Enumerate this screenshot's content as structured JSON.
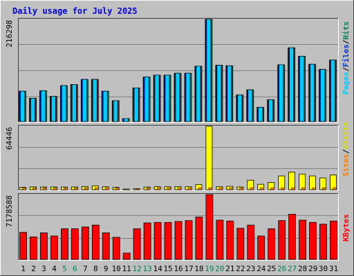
{
  "chart_data": [
    {
      "type": "bar",
      "title": "Daily usage for July 2025",
      "categories": [
        "1",
        "2",
        "3",
        "4",
        "5",
        "6",
        "7",
        "8",
        "9",
        "10",
        "11",
        "12",
        "13",
        "14",
        "15",
        "16",
        "17",
        "18",
        "19",
        "20",
        "21",
        "22",
        "23",
        "24",
        "25",
        "26",
        "27",
        "28",
        "29",
        "30",
        "31"
      ],
      "weekend_days": [
        "5",
        "6",
        "12",
        "13",
        "19",
        "20",
        "26",
        "27"
      ],
      "ymax_label": "216298",
      "ylim": [
        0,
        216298
      ],
      "grid": true,
      "legend_position": "right",
      "legend_entries": [
        "Pages",
        "/",
        "Files",
        "/",
        "Hits"
      ],
      "series": [
        {
          "name": "Hits",
          "color": "#00805c",
          "values": [
            64000,
            49000,
            65000,
            53000,
            76000,
            78000,
            89000,
            89000,
            64000,
            44000,
            6000,
            71000,
            94000,
            98000,
            98000,
            102000,
            102000,
            117000,
            216298,
            119000,
            118000,
            56000,
            67000,
            30000,
            46000,
            120000,
            156000,
            138000,
            121000,
            110000,
            130000
          ]
        },
        {
          "name": "Files",
          "color": "#0033cc",
          "values": [
            64000,
            49000,
            65000,
            53000,
            76000,
            78000,
            89000,
            89000,
            64000,
            44000,
            6000,
            71000,
            94000,
            98000,
            98000,
            102000,
            102000,
            117000,
            216298,
            119000,
            118000,
            56000,
            67000,
            30000,
            46000,
            120000,
            156000,
            138000,
            121000,
            110000,
            130000
          ]
        },
        {
          "name": "Pages",
          "color": "#00ccff",
          "values": [
            64000,
            49000,
            65000,
            53000,
            76000,
            78000,
            89000,
            89000,
            64000,
            44000,
            6000,
            71000,
            94000,
            98000,
            98000,
            102000,
            102000,
            117000,
            216298,
            119000,
            118000,
            56000,
            67000,
            30000,
            46000,
            120000,
            156000,
            138000,
            121000,
            110000,
            130000
          ]
        }
      ]
    },
    {
      "type": "bar",
      "ymax_label": "64446",
      "ylim": [
        0,
        64446
      ],
      "grid": true,
      "legend_position": "right",
      "legend_entries": [
        "Sites",
        "/",
        "Visits"
      ],
      "series": [
        {
          "name": "Visits",
          "color": "#ffff00",
          "values": [
            2500,
            2900,
            2700,
            2800,
            2800,
            2800,
            3300,
            4000,
            3000,
            2400,
            200,
            1100,
            2700,
            3100,
            3000,
            3200,
            3200,
            5400,
            64446,
            3200,
            3500,
            2800,
            9700,
            5500,
            7400,
            14000,
            18000,
            16000,
            14000,
            12000,
            15000
          ]
        },
        {
          "name": "Sites",
          "color": "#ff8000",
          "values": [
            2000,
            2000,
            2000,
            2000,
            2000,
            2000,
            2000,
            2000,
            2000,
            2000,
            200,
            1000,
            2000,
            2000,
            2000,
            2000,
            2000,
            2000,
            2000,
            2000,
            2000,
            2000,
            2000,
            2000,
            2000,
            2000,
            2000,
            2000,
            2000,
            2000,
            2000
          ]
        }
      ]
    },
    {
      "type": "bar",
      "ymax_label": "7178588",
      "ylim": [
        0,
        7178588
      ],
      "grid": true,
      "legend_position": "right",
      "legend_entries": [
        "KBytes"
      ],
      "series": [
        {
          "name": "KBytes",
          "color": "#ff0000",
          "values": [
            3000000,
            2500000,
            2950000,
            2600000,
            3400000,
            3400000,
            3600000,
            3800000,
            2950000,
            2450000,
            700000,
            3400000,
            4050000,
            4100000,
            4100000,
            4200000,
            4300000,
            4700000,
            7178588,
            4350000,
            4250000,
            3450000,
            3800000,
            2600000,
            3400000,
            4300000,
            5000000,
            4350000,
            4100000,
            3900000,
            4250000
          ]
        }
      ]
    }
  ]
}
